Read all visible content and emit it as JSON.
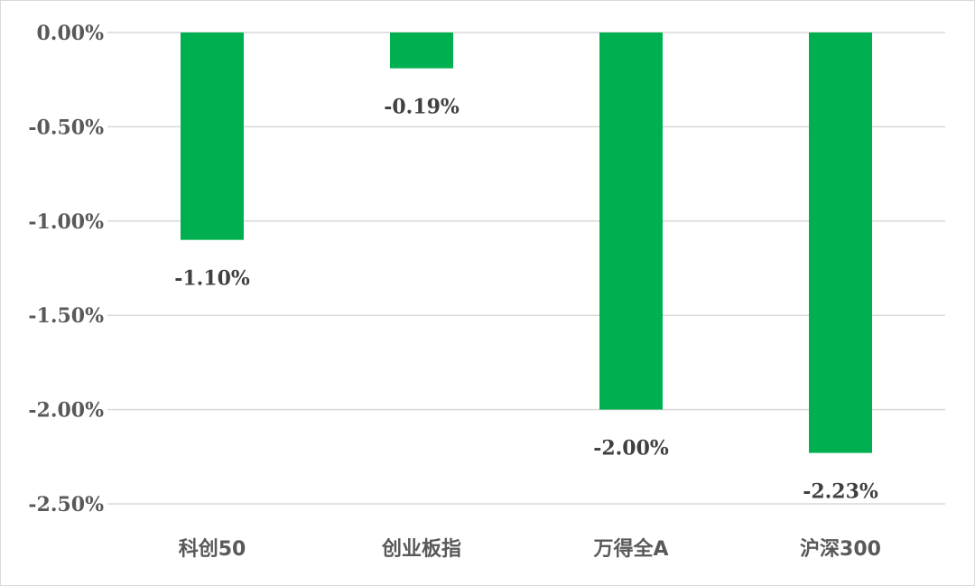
{
  "chart_data": {
    "type": "bar",
    "categories": [
      "科创50",
      "创业板指",
      "万得全A",
      "沪深300"
    ],
    "values": [
      -1.1,
      -0.19,
      -2.0,
      -2.23
    ],
    "data_labels": [
      "-1.10%",
      "-0.19%",
      "-2.00%",
      "-2.23%"
    ],
    "ylim": [
      -2.5,
      0
    ],
    "yticks": [
      0,
      -0.5,
      -1.0,
      -1.5,
      -2.0,
      -2.5
    ],
    "ytick_labels": [
      "0.00%",
      "-0.50%",
      "-1.00%",
      "-1.50%",
      "-2.00%",
      "-2.50%"
    ],
    "grid": true,
    "legend": "none",
    "bar_color": "#00b050",
    "grid_color": "#d9d9d9"
  }
}
